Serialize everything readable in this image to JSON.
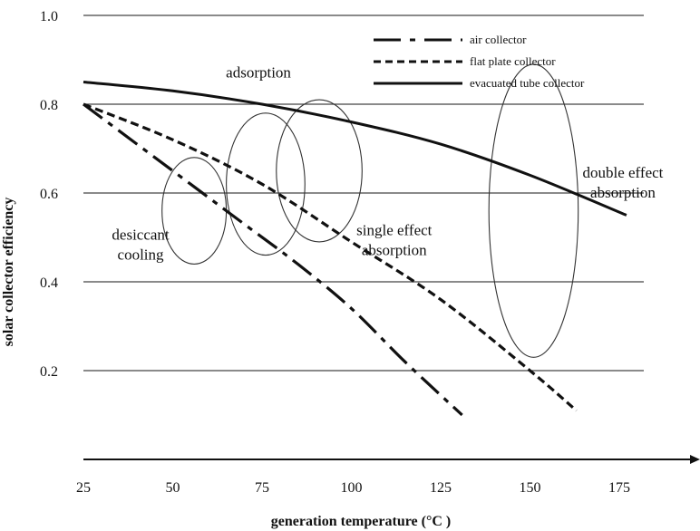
{
  "chart_data": {
    "type": "line",
    "title": "",
    "xlabel": "generation temperature (°C )",
    "ylabel": "solar collector efficiency",
    "xlim": [
      25,
      200
    ],
    "ylim": [
      0,
      1.0
    ],
    "x_ticks": [
      "25",
      "50",
      "75",
      "100",
      "125",
      "150",
      "175"
    ],
    "y_ticks": [
      "0.2",
      "0.4",
      "0.6",
      "0.8",
      "1.0"
    ],
    "grid": true,
    "legend_position": "top-right",
    "series": [
      {
        "name": "air collector",
        "style": "dash-dot",
        "x": [
          25,
          40,
          55,
          70,
          85,
          100,
          115,
          131
        ],
        "y": [
          0.8,
          0.71,
          0.62,
          0.53,
          0.44,
          0.34,
          0.22,
          0.1
        ]
      },
      {
        "name": "flat plate collector",
        "style": "dashed",
        "x": [
          25,
          50,
          75,
          100,
          125,
          150,
          163
        ],
        "y": [
          0.8,
          0.72,
          0.62,
          0.49,
          0.36,
          0.2,
          0.11
        ]
      },
      {
        "name": "evacuated tube collector",
        "style": "solid",
        "x": [
          25,
          50,
          75,
          100,
          125,
          150,
          177
        ],
        "y": [
          0.85,
          0.83,
          0.8,
          0.76,
          0.71,
          0.64,
          0.55
        ]
      }
    ],
    "regions": [
      {
        "label_lines": [
          "adsorption"
        ],
        "center": [
          76,
          0.62
        ],
        "rx": 11,
        "ry": 0.16,
        "label_at": [
          74,
          0.86
        ]
      },
      {
        "label_lines": [
          "desiccant",
          "cooling"
        ],
        "center": [
          56,
          0.56
        ],
        "rx": 9,
        "ry": 0.12,
        "label_at": [
          41,
          0.495
        ]
      },
      {
        "label_lines": [
          "single effect",
          "absorption"
        ],
        "center": [
          91,
          0.65
        ],
        "rx": 12,
        "ry": 0.16,
        "label_at": [
          112,
          0.505
        ]
      },
      {
        "label_lines": [
          "double effect",
          "absorption"
        ],
        "center": [
          151,
          0.56
        ],
        "rx": 12.5,
        "ry": 0.33,
        "label_at": [
          176,
          0.635
        ]
      }
    ]
  }
}
